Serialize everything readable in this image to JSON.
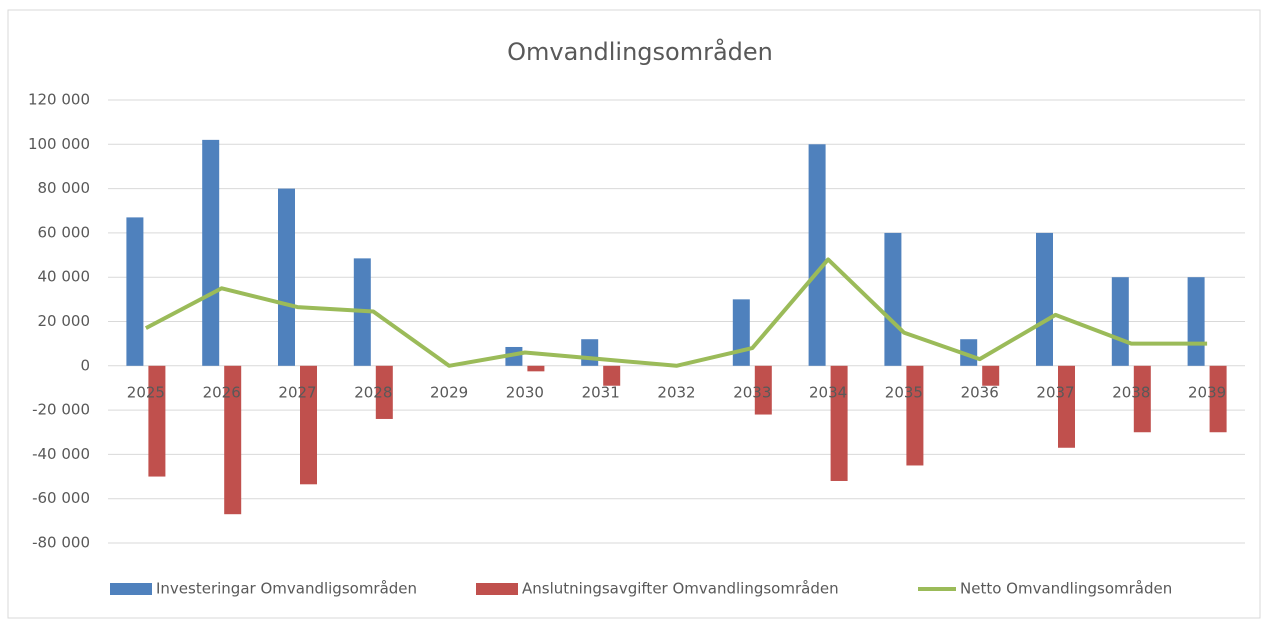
{
  "chart_data": {
    "type": "bar_line",
    "title": "Omvandlingsområden",
    "categories": [
      "2025",
      "2026",
      "2027",
      "2028",
      "2029",
      "2030",
      "2031",
      "2032",
      "2033",
      "2034",
      "2035",
      "2036",
      "2037",
      "2038",
      "2039"
    ],
    "series": [
      {
        "name": "Investeringar Omvandligsområden",
        "color": "#4f81bd",
        "kind": "bar",
        "values": [
          67000,
          102000,
          80000,
          48500,
          0,
          8500,
          12000,
          0,
          30000,
          100000,
          60000,
          12000,
          60000,
          40000,
          40000
        ]
      },
      {
        "name": "Anslutningsavgifter Omvandlingsområden",
        "color": "#c0504d",
        "kind": "bar",
        "values": [
          -50000,
          -67000,
          -53500,
          -24000,
          0,
          -2500,
          -9000,
          0,
          -22000,
          -52000,
          -45000,
          -9000,
          -37000,
          -30000,
          -30000
        ]
      },
      {
        "name": "Netto Omvandlingsområden",
        "color": "#9bbb59",
        "kind": "line",
        "values": [
          17000,
          35000,
          26500,
          24500,
          0,
          6000,
          3000,
          0,
          8000,
          48000,
          15000,
          3000,
          23000,
          10000,
          10000
        ]
      }
    ],
    "ylim": [
      -80000,
      120000
    ],
    "yticks": [
      {
        "value": -80000,
        "label": "-80 000"
      },
      {
        "value": -60000,
        "label": "-60 000"
      },
      {
        "value": -40000,
        "label": "-40 000"
      },
      {
        "value": -20000,
        "label": "-20 000"
      },
      0,
      {
        "value": 20000,
        "label": "20 000"
      },
      {
        "value": 40000,
        "label": "40 000"
      },
      {
        "value": 60000,
        "label": "60 000"
      },
      {
        "value": 80000,
        "label": "80 000"
      },
      {
        "value": 100000,
        "label": "100 000"
      },
      {
        "value": 120000,
        "label": "120 000"
      }
    ],
    "grid": true,
    "legend": "bottom"
  }
}
